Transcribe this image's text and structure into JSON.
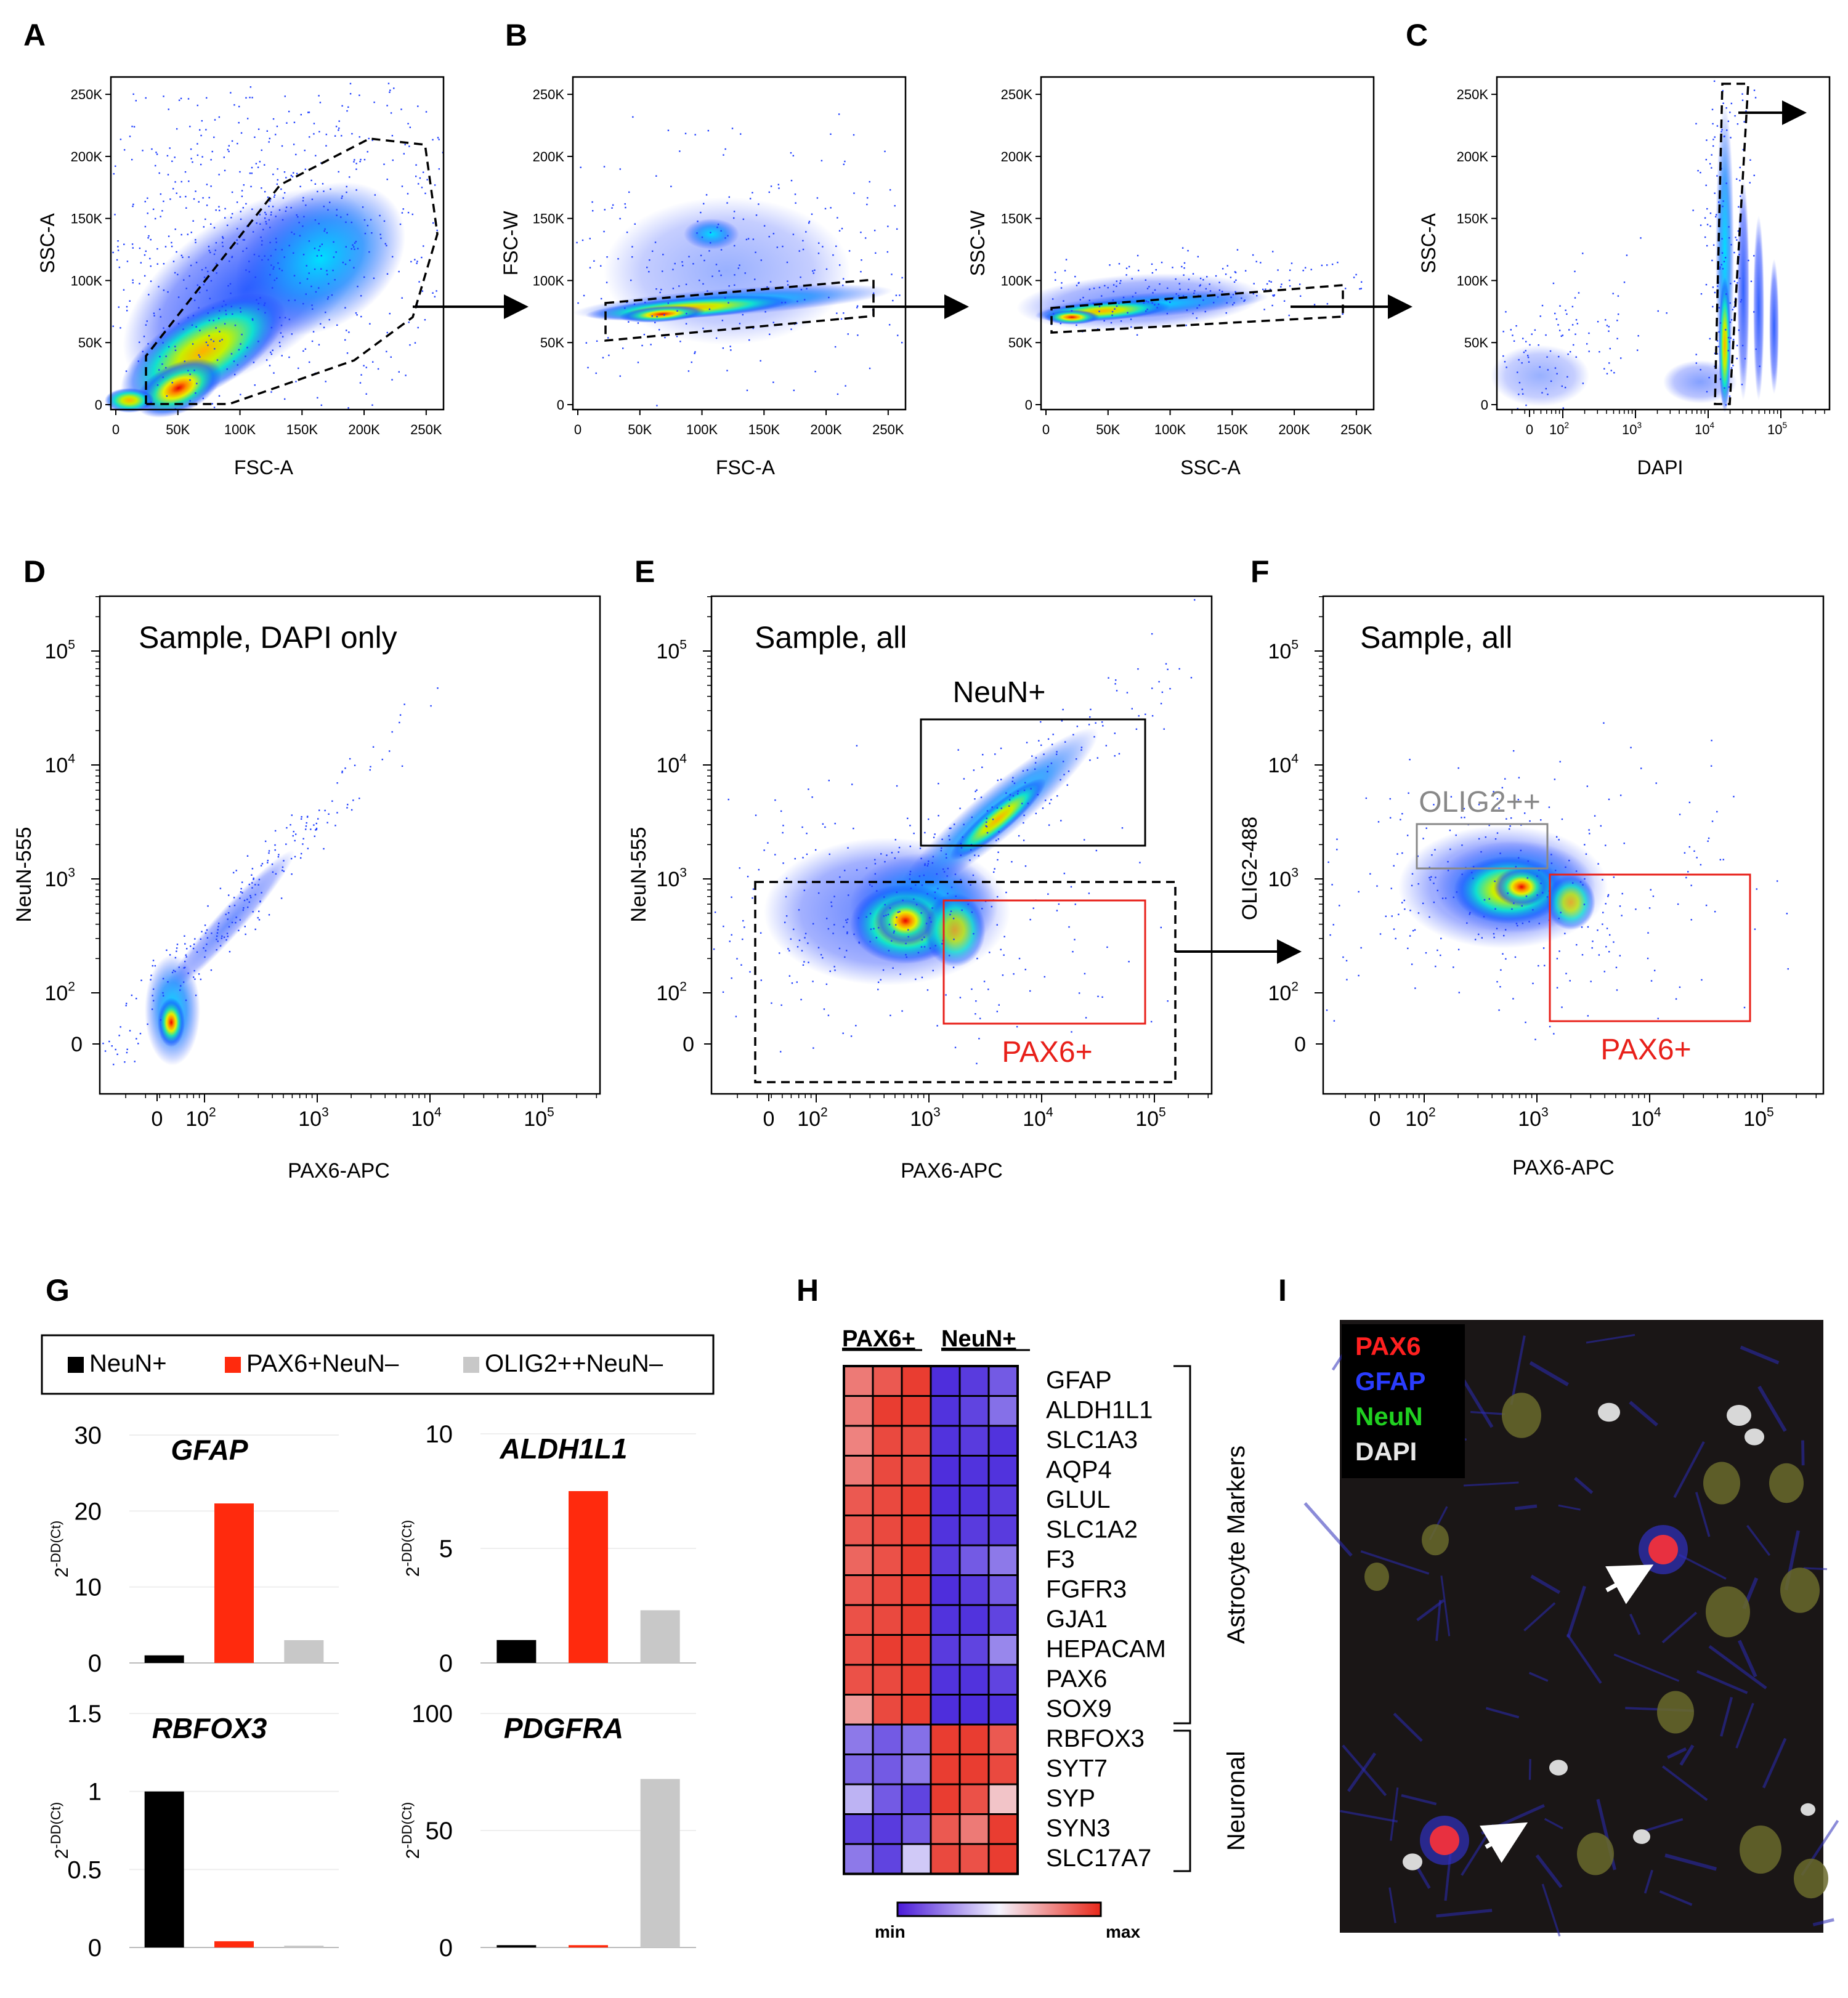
{
  "panels": {
    "A": {
      "letter": "A",
      "xlabel": "FSC-A",
      "ylabel": "SSC-A"
    },
    "B1": {
      "letter": "B",
      "xlabel": "FSC-A",
      "ylabel": "FSC-W"
    },
    "B2": {
      "xlabel": "SSC-A",
      "ylabel": "SSC-W"
    },
    "C": {
      "letter": "C",
      "xlabel": "DAPI",
      "ylabel": "SSC-A"
    },
    "D": {
      "letter": "D",
      "title": "Sample, DAPI only",
      "xlabel": "PAX6-APC",
      "ylabel": "NeuN-555"
    },
    "E": {
      "letter": "E",
      "title": "Sample, all",
      "xlabel": "PAX6-APC",
      "ylabel": "NeuN-555",
      "gate_neun": "NeuN+",
      "gate_pax6": "PAX6+"
    },
    "F": {
      "letter": "F",
      "title": "Sample, all",
      "xlabel": "PAX6-APC",
      "ylabel": "OLIG2-488",
      "gate_olig2": "OLIG2++",
      "gate_pax6": "PAX6+"
    },
    "G": {
      "letter": "G"
    },
    "H": {
      "letter": "H"
    },
    "I": {
      "letter": "I"
    }
  },
  "linear_ticks": [
    "0",
    "50K",
    "100K",
    "150K",
    "200K",
    "250K"
  ],
  "log_ticks_small": [
    "0",
    "10",
    "10",
    "10",
    "10"
  ],
  "log_ticks": [
    "0",
    "10",
    "10",
    "10",
    "10"
  ],
  "log_exps": [
    "2",
    "3",
    "4",
    "5"
  ],
  "colors": {
    "neun": "#000000",
    "pax6": "#ff2a0d",
    "olig2": "#c8c8c8",
    "gate_pax6": "#e8201a",
    "gate_olig2": "#888888"
  },
  "legend": {
    "items": [
      "NeuN+",
      "PAX6+NeuN–",
      "OLIG2++NeuN–"
    ]
  },
  "qpcr_ylabel_base": "2",
  "qpcr_ylabel_exp": "-DD(Ct)",
  "chart_data": [
    {
      "type": "bar",
      "title": "GFAP",
      "categories": [
        "NeuN+",
        "PAX6+NeuN–",
        "OLIG2++NeuN–"
      ],
      "values": [
        1,
        21,
        3
      ],
      "ylim": [
        0,
        30
      ],
      "yticks": [
        "0",
        "10",
        "20",
        "30"
      ]
    },
    {
      "type": "bar",
      "title": "ALDH1L1",
      "categories": [
        "NeuN+",
        "PAX6+NeuN–",
        "OLIG2++NeuN–"
      ],
      "values": [
        1,
        7.5,
        2.3
      ],
      "ylim": [
        0,
        10
      ],
      "yticks": [
        "0",
        "5",
        "10"
      ]
    },
    {
      "type": "bar",
      "title": "RBFOX3",
      "categories": [
        "NeuN+",
        "PAX6+NeuN–",
        "OLIG2++NeuN–"
      ],
      "values": [
        1,
        0.04,
        0.01
      ],
      "ylim": [
        0,
        1.5
      ],
      "yticks": [
        "0",
        "0.5",
        "1",
        "1.5"
      ]
    },
    {
      "type": "bar",
      "title": "PDGFRA",
      "categories": [
        "NeuN+",
        "PAX6+NeuN–",
        "OLIG2++NeuN–"
      ],
      "values": [
        1,
        1,
        72
      ],
      "ylim": [
        0,
        100
      ],
      "yticks": [
        "0",
        "50",
        "100"
      ]
    }
  ],
  "heatmap": {
    "group_pax6": "PAX6+",
    "group_neun": "NeuN+",
    "genes": [
      "GFAP",
      "ALDH1L1",
      "SLC1A3",
      "AQP4",
      "GLUL",
      "SLC1A2",
      "F3",
      "FGFR3",
      "GJA1",
      "HEPACAM",
      "PAX6",
      "SOX9",
      "RBFOX3",
      "SYT7",
      "SYP",
      "SYN3",
      "SLC17A7"
    ],
    "astro_label": "Astrocyte Markers",
    "neuronal_label": "Neuronal",
    "scale_min": "min",
    "scale_max": "max",
    "values": [
      [
        0.8,
        0.88,
        0.95,
        0.05,
        0.08,
        0.15
      ],
      [
        0.8,
        0.95,
        0.95,
        0.06,
        0.1,
        0.2
      ],
      [
        0.78,
        0.92,
        0.92,
        0.06,
        0.08,
        0.06
      ],
      [
        0.8,
        0.92,
        0.92,
        0.05,
        0.06,
        0.06
      ],
      [
        0.88,
        0.92,
        0.95,
        0.05,
        0.06,
        0.08
      ],
      [
        0.88,
        0.92,
        0.95,
        0.06,
        0.08,
        0.08
      ],
      [
        0.85,
        0.9,
        0.95,
        0.08,
        0.15,
        0.22
      ],
      [
        0.88,
        0.92,
        0.95,
        0.05,
        0.08,
        0.15
      ],
      [
        0.9,
        0.92,
        0.95,
        0.06,
        0.06,
        0.1
      ],
      [
        0.9,
        0.95,
        0.95,
        0.08,
        0.1,
        0.25
      ],
      [
        0.9,
        0.92,
        0.95,
        0.06,
        0.06,
        0.1
      ],
      [
        0.72,
        0.92,
        0.95,
        0.05,
        0.05,
        0.06
      ],
      [
        0.22,
        0.15,
        0.2,
        0.95,
        0.95,
        0.88
      ],
      [
        0.18,
        0.15,
        0.22,
        0.95,
        0.95,
        0.92
      ],
      [
        0.35,
        0.15,
        0.1,
        0.95,
        0.9,
        0.62
      ],
      [
        0.1,
        0.08,
        0.15,
        0.88,
        0.8,
        0.95
      ],
      [
        0.22,
        0.1,
        0.4,
        0.92,
        0.9,
        0.95
      ]
    ]
  },
  "micrograph": {
    "labels": [
      "PAX6",
      "GFAP",
      "NeuN",
      "DAPI"
    ],
    "label_colors": [
      "#ff2020",
      "#2a3cff",
      "#20d020",
      "#e8e8e8"
    ]
  }
}
